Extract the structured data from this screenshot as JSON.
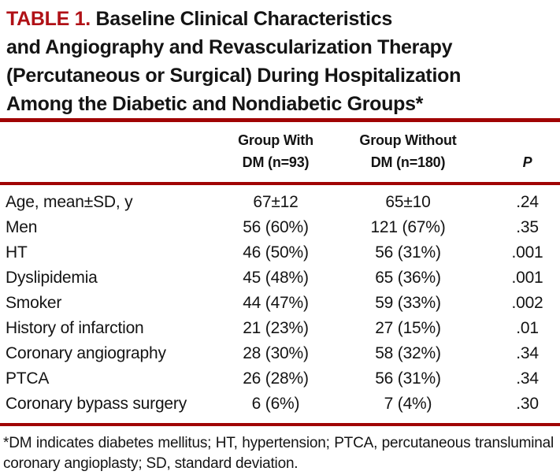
{
  "colors": {
    "table_number_red": "#b01116",
    "rule_red": "#a00404",
    "text_black": "#141414",
    "background": "#ffffff"
  },
  "title": {
    "label": "TABLE 1.",
    "lines": [
      "Baseline Clinical Characteristics",
      "and Angiography and Revascularization Therapy",
      "(Percutaneous or Surgical) During Hospitalization",
      "Among the Diabetic and Nondiabetic Groups*"
    ]
  },
  "table": {
    "header": {
      "group_with_line1": "Group With",
      "group_with_line2": "DM (n=93)",
      "group_without_line1": "Group Without",
      "group_without_line2": "DM (n=180)",
      "p_label": "P"
    },
    "rows": [
      {
        "label": "Age, mean±SD, y",
        "with_dm": "67±12",
        "without_dm": "65±10",
        "p": ".24"
      },
      {
        "label": "Men",
        "with_dm": "56 (60%)",
        "without_dm": "121 (67%)",
        "p": ".35"
      },
      {
        "label": "HT",
        "with_dm": "46 (50%)",
        "without_dm": "56 (31%)",
        "p": ".001"
      },
      {
        "label": "Dyslipidemia",
        "with_dm": "45 (48%)",
        "without_dm": "65 (36%)",
        "p": ".001"
      },
      {
        "label": "Smoker",
        "with_dm": "44 (47%)",
        "without_dm": "59 (33%)",
        "p": ".002"
      },
      {
        "label": "History of infarction",
        "with_dm": "21 (23%)",
        "without_dm": "27 (15%)",
        "p": ".01"
      },
      {
        "label": "Coronary angiography",
        "with_dm": "28 (30%)",
        "without_dm": "58 (32%)",
        "p": ".34"
      },
      {
        "label": "PTCA",
        "with_dm": "26 (28%)",
        "without_dm": "56 (31%)",
        "p": ".34"
      },
      {
        "label": "Coronary bypass surgery",
        "with_dm": "6 (6%)",
        "without_dm": "7 (4%)",
        "p": ".30"
      }
    ]
  },
  "footnote": "*DM indicates diabetes mellitus; HT, hypertension; PTCA, percutaneous transluminal coronary angioplasty; SD, standard deviation."
}
